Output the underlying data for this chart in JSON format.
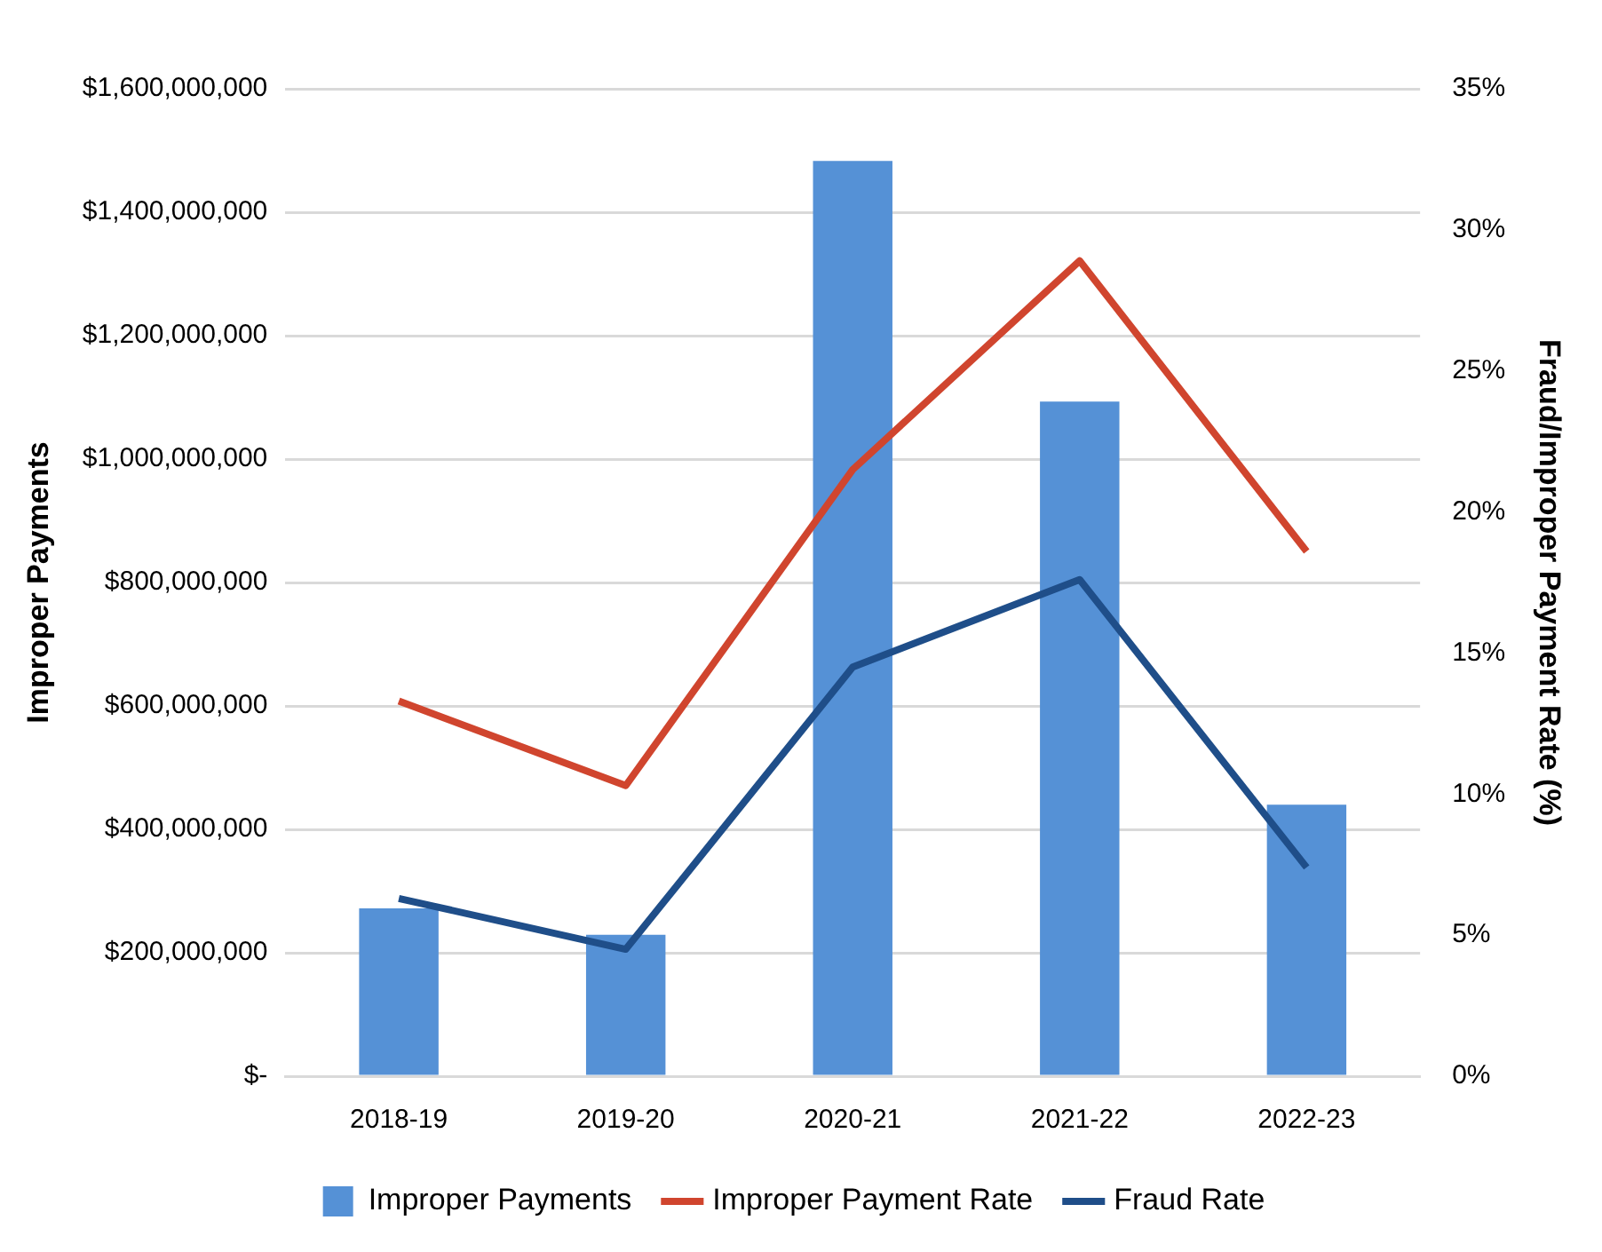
{
  "chart_data": {
    "type": "bar",
    "categories": [
      "2018-19",
      "2019-20",
      "2020-21",
      "2021-22",
      "2022-23"
    ],
    "series": [
      {
        "name": "Improper Payments",
        "color": "#5591d6",
        "values": [
          272000000,
          229000000,
          1483000000,
          1093000000,
          440000000
        ]
      },
      {
        "name": "Improper Payment Rate",
        "type": "line",
        "axis": "y2",
        "color": "#d0452e",
        "values": [
          13.3,
          10.3,
          21.5,
          28.9,
          18.6
        ]
      },
      {
        "name": "Fraud Rate",
        "type": "line",
        "axis": "y2",
        "color": "#1f4e89",
        "values": [
          6.3,
          4.5,
          14.5,
          17.6,
          7.4
        ]
      }
    ],
    "ylabel": "Improper Payments",
    "y2label": "Fraud/Improper Payment Rate (%)",
    "ylim": [
      0,
      1600000000
    ],
    "yticks": [
      {
        "value": 0,
        "label": "$-"
      },
      {
        "value": 200000000,
        "label": "$200,000,000"
      },
      {
        "value": 400000000,
        "label": "$400,000,000"
      },
      {
        "value": 600000000,
        "label": "$600,000,000"
      },
      {
        "value": 800000000,
        "label": "$800,000,000"
      },
      {
        "value": 1000000000,
        "label": "$1,000,000,000"
      },
      {
        "value": 1200000000,
        "label": "$1,200,000,000"
      },
      {
        "value": 1400000000,
        "label": "$1,400,000,000"
      },
      {
        "value": 1600000000,
        "label": "$1,600,000,000"
      }
    ],
    "y2lim": [
      0,
      35
    ],
    "y2ticks": [
      {
        "value": 0,
        "label": "0%"
      },
      {
        "value": 5,
        "label": "5%"
      },
      {
        "value": 10,
        "label": "10%"
      },
      {
        "value": 15,
        "label": "15%"
      },
      {
        "value": 20,
        "label": "20%"
      },
      {
        "value": 25,
        "label": "25%"
      },
      {
        "value": 30,
        "label": "30%"
      },
      {
        "value": 35,
        "label": "35%"
      }
    ],
    "grid": "y",
    "legend": "bottom",
    "marker": "none",
    "line_style": "solid"
  }
}
